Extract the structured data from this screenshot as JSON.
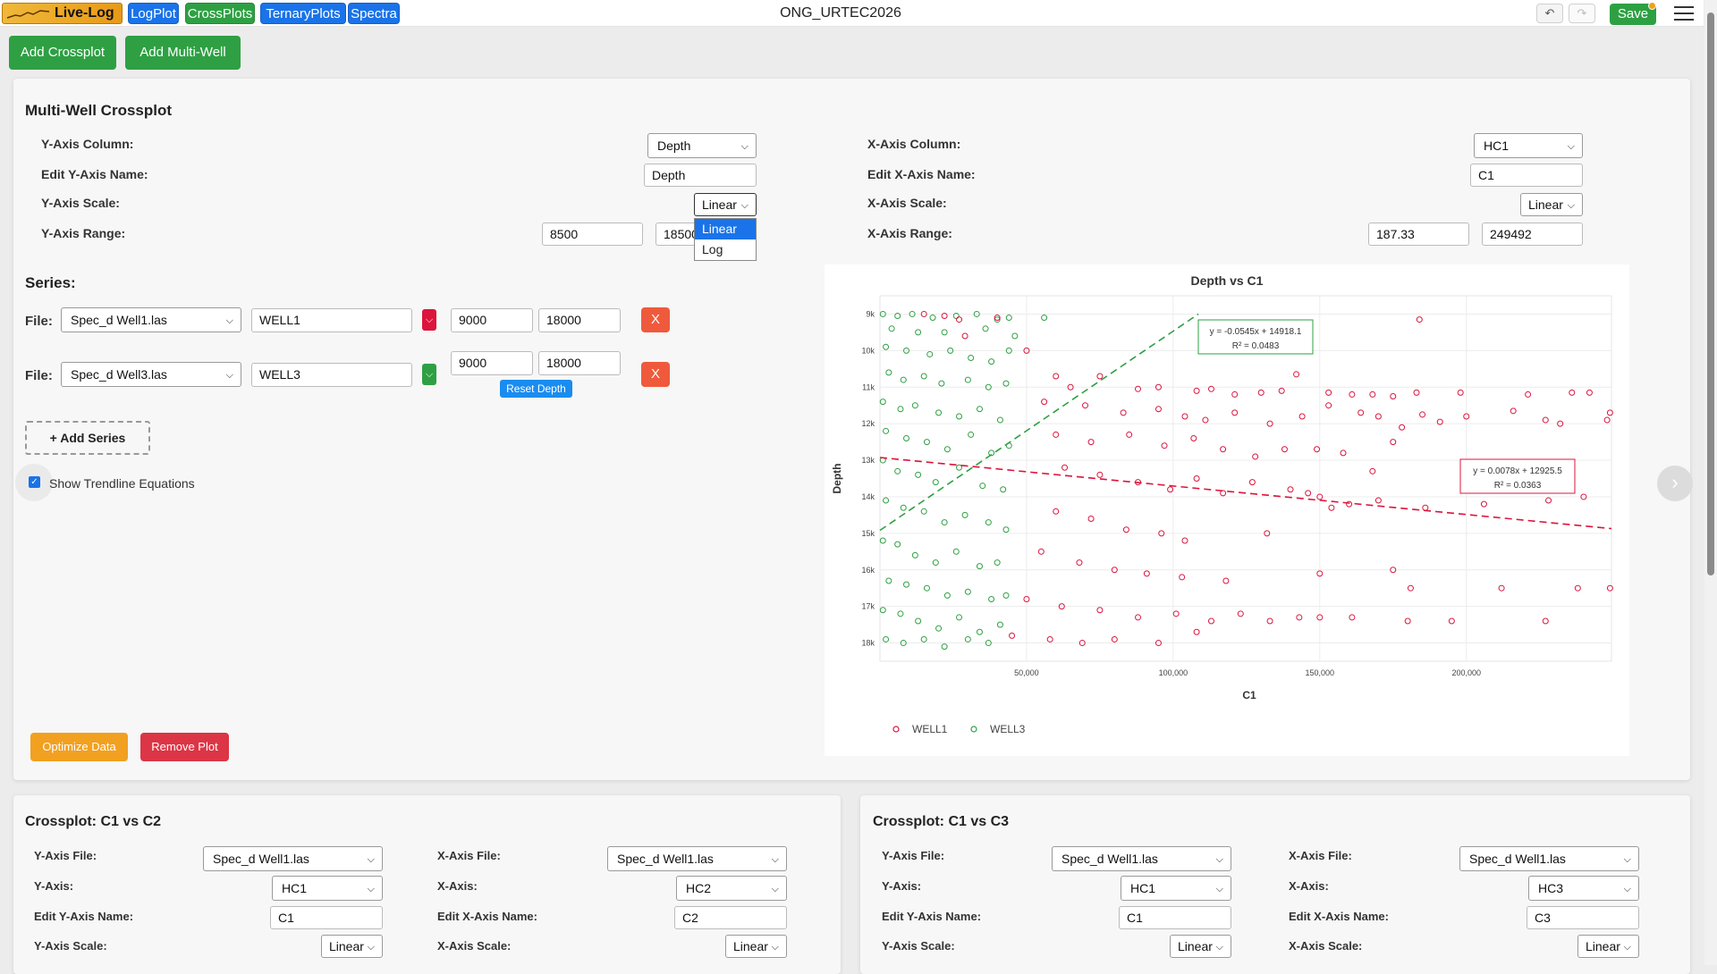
{
  "nav": {
    "logo_text": "Live-Log",
    "buttons": [
      {
        "label": "LogPlot",
        "color": "#1a73e8"
      },
      {
        "label": "CrossPlots",
        "color": "#2ea043"
      },
      {
        "label": "TernaryPlots",
        "color": "#1a73e8"
      },
      {
        "label": "Spectra",
        "color": "#1a73e8"
      }
    ],
    "doc_title": "ONG_URTEC2026",
    "undo_icon": "undo-icon",
    "redo_icon": "redo-icon",
    "save_label": "Save",
    "menu_icon": "hamburger-menu-icon"
  },
  "actions": {
    "add_crossplot": "Add Crossplot",
    "add_multiwell": "Add Multi-Well"
  },
  "multiwell": {
    "title": "Multi-Well Crossplot",
    "y_axis_column_label": "Y-Axis Column:",
    "y_axis_column_value": "Depth",
    "edit_y_name_label": "Edit Y-Axis Name:",
    "edit_y_name_value": "Depth",
    "y_scale_label": "Y-Axis Scale:",
    "y_scale_value": "Linear",
    "y_range_label": "Y-Axis Range:",
    "y_range_min": "8500",
    "y_range_max": "18500",
    "y_scale_options": [
      "Linear",
      "Log"
    ],
    "x_axis_column_label": "X-Axis Column:",
    "x_axis_column_value": "HC1",
    "edit_x_name_label": "Edit X-Axis Name:",
    "edit_x_name_value": "C1",
    "x_scale_label": "X-Axis Scale:",
    "x_scale_value": "Linear",
    "x_range_label": "X-Axis Range:",
    "x_range_min": "187.33",
    "x_range_max": "249492",
    "series_title": "Series:",
    "series": [
      {
        "file_label": "File:",
        "file": "Spec_d Well1.las",
        "name": "WELL1",
        "color": "#dc143c",
        "depth_min": "9000",
        "depth_max": "18000",
        "remove": "X"
      },
      {
        "file_label": "File:",
        "file": "Spec_d Well3.las",
        "name": "WELL3",
        "color": "#2ea043",
        "depth_min": "9000",
        "depth_max": "18000",
        "remove": "X",
        "reset": "Reset Depth"
      }
    ],
    "add_series": "+ Add Series",
    "show_trendline": "Show Trendline Equations",
    "optimize": "Optimize Data",
    "remove_plot": "Remove Plot"
  },
  "chart_data": {
    "type": "scatter",
    "title": "Depth vs C1",
    "xlabel": "C1",
    "ylabel": "Depth",
    "xlim": [
      0,
      249492
    ],
    "ylim": [
      8500,
      18500
    ],
    "y_reversed": true,
    "x_ticks": [
      "50,000",
      "100,000",
      "150,000",
      "200,000"
    ],
    "y_ticks": [
      "9k",
      "10k",
      "11k",
      "12k",
      "13k",
      "14k",
      "15k",
      "16k",
      "17k",
      "18k"
    ],
    "grid": true,
    "legend_position": "bottom-left",
    "series": [
      {
        "name": "WELL1",
        "color": "#dc143c",
        "trendline": {
          "equation": "y = 0.0078x + 12925.5",
          "r2": "R² = 0.0363",
          "slope": 0.0078,
          "intercept": 12925.5
        },
        "points": [
          [
            15000,
            9000
          ],
          [
            22000,
            9050
          ],
          [
            27000,
            9150
          ],
          [
            40000,
            9100
          ],
          [
            184000,
            9150
          ],
          [
            29000,
            9600
          ],
          [
            50000,
            10000
          ],
          [
            60000,
            10700
          ],
          [
            75000,
            10700
          ],
          [
            65000,
            11000
          ],
          [
            88000,
            11050
          ],
          [
            95000,
            11000
          ],
          [
            108000,
            11100
          ],
          [
            113000,
            11050
          ],
          [
            142000,
            10650
          ],
          [
            121000,
            11200
          ],
          [
            130000,
            11150
          ],
          [
            137000,
            11100
          ],
          [
            153000,
            11150
          ],
          [
            161000,
            11200
          ],
          [
            168000,
            11200
          ],
          [
            175000,
            11250
          ],
          [
            183000,
            11150
          ],
          [
            198000,
            11150
          ],
          [
            221000,
            11200
          ],
          [
            236000,
            11150
          ],
          [
            242000,
            11150
          ],
          [
            249000,
            11700
          ],
          [
            248000,
            11900
          ],
          [
            56000,
            11400
          ],
          [
            70000,
            11500
          ],
          [
            83000,
            11700
          ],
          [
            95000,
            11600
          ],
          [
            104000,
            11800
          ],
          [
            111000,
            11900
          ],
          [
            121000,
            11700
          ],
          [
            133000,
            12000
          ],
          [
            144000,
            11800
          ],
          [
            153000,
            11500
          ],
          [
            164000,
            11700
          ],
          [
            170000,
            11800
          ],
          [
            178000,
            12100
          ],
          [
            185000,
            11750
          ],
          [
            191000,
            11950
          ],
          [
            200000,
            11800
          ],
          [
            216000,
            11650
          ],
          [
            227000,
            11900
          ],
          [
            232000,
            12000
          ],
          [
            60000,
            12300
          ],
          [
            72000,
            12500
          ],
          [
            85000,
            12300
          ],
          [
            97000,
            12600
          ],
          [
            107000,
            12400
          ],
          [
            117000,
            12700
          ],
          [
            128000,
            12900
          ],
          [
            138000,
            12700
          ],
          [
            149000,
            12700
          ],
          [
            158000,
            12800
          ],
          [
            168000,
            13300
          ],
          [
            175000,
            12500
          ],
          [
            205000,
            13300
          ],
          [
            216000,
            13300
          ],
          [
            63000,
            13200
          ],
          [
            75000,
            13400
          ],
          [
            88000,
            13600
          ],
          [
            99000,
            13800
          ],
          [
            108000,
            13500
          ],
          [
            117000,
            13900
          ],
          [
            127000,
            13600
          ],
          [
            140000,
            13800
          ],
          [
            146000,
            13900
          ],
          [
            150000,
            14000
          ],
          [
            154000,
            14300
          ],
          [
            160000,
            14200
          ],
          [
            170000,
            14100
          ],
          [
            186000,
            14300
          ],
          [
            206000,
            14200
          ],
          [
            228000,
            14100
          ],
          [
            240000,
            14000
          ],
          [
            60000,
            14400
          ],
          [
            72000,
            14600
          ],
          [
            84000,
            14900
          ],
          [
            96000,
            15000
          ],
          [
            104000,
            15200
          ],
          [
            132000,
            15000
          ],
          [
            55000,
            15500
          ],
          [
            68000,
            15800
          ],
          [
            80000,
            16000
          ],
          [
            91000,
            16100
          ],
          [
            103000,
            16200
          ],
          [
            118000,
            16300
          ],
          [
            150000,
            16100
          ],
          [
            175000,
            16000
          ],
          [
            181000,
            16500
          ],
          [
            212000,
            16500
          ],
          [
            238000,
            16500
          ],
          [
            249000,
            16500
          ],
          [
            50000,
            16800
          ],
          [
            62000,
            17000
          ],
          [
            75000,
            17100
          ],
          [
            88000,
            17300
          ],
          [
            101000,
            17200
          ],
          [
            113000,
            17400
          ],
          [
            123000,
            17200
          ],
          [
            133000,
            17400
          ],
          [
            143000,
            17300
          ],
          [
            150000,
            17300
          ],
          [
            161000,
            17300
          ],
          [
            180000,
            17400
          ],
          [
            195000,
            17400
          ],
          [
            227000,
            17400
          ],
          [
            45000,
            17800
          ],
          [
            58000,
            17900
          ],
          [
            69000,
            18000
          ],
          [
            80000,
            17900
          ],
          [
            95000,
            18000
          ],
          [
            108000,
            17700
          ]
        ]
      },
      {
        "name": "WELL3",
        "color": "#2ea043",
        "trendline": {
          "equation": "y = -0.0545x + 14918.1",
          "r2": "R² = 0.0483",
          "slope": -0.0545,
          "intercept": 14918.1
        },
        "points": [
          [
            1000,
            9000
          ],
          [
            6000,
            9050
          ],
          [
            11000,
            9000
          ],
          [
            18000,
            9100
          ],
          [
            26000,
            9050
          ],
          [
            33000,
            9000
          ],
          [
            40000,
            9150
          ],
          [
            44000,
            9100
          ],
          [
            56000,
            9100
          ],
          [
            4000,
            9400
          ],
          [
            13000,
            9500
          ],
          [
            22000,
            9500
          ],
          [
            36000,
            9400
          ],
          [
            46000,
            9600
          ],
          [
            2000,
            9900
          ],
          [
            9000,
            10000
          ],
          [
            17000,
            10100
          ],
          [
            24000,
            10000
          ],
          [
            31000,
            10200
          ],
          [
            38000,
            10300
          ],
          [
            44000,
            10000
          ],
          [
            3000,
            10600
          ],
          [
            8000,
            10800
          ],
          [
            15000,
            10700
          ],
          [
            21000,
            10900
          ],
          [
            30000,
            10800
          ],
          [
            37000,
            11000
          ],
          [
            43000,
            10900
          ],
          [
            1000,
            11400
          ],
          [
            7000,
            11600
          ],
          [
            12000,
            11500
          ],
          [
            20000,
            11700
          ],
          [
            27000,
            11800
          ],
          [
            34000,
            11600
          ],
          [
            41000,
            11900
          ],
          [
            2000,
            12200
          ],
          [
            9000,
            12400
          ],
          [
            16000,
            12500
          ],
          [
            23000,
            12700
          ],
          [
            31000,
            12300
          ],
          [
            38000,
            12800
          ],
          [
            44000,
            12600
          ],
          [
            1000,
            13000
          ],
          [
            6000,
            13300
          ],
          [
            13000,
            13400
          ],
          [
            19000,
            13600
          ],
          [
            27000,
            13200
          ],
          [
            35000,
            13700
          ],
          [
            42000,
            13800
          ],
          [
            2000,
            14100
          ],
          [
            8000,
            14300
          ],
          [
            15000,
            14400
          ],
          [
            22000,
            14700
          ],
          [
            29000,
            14500
          ],
          [
            37000,
            14700
          ],
          [
            43000,
            14900
          ],
          [
            1000,
            15200
          ],
          [
            6000,
            15300
          ],
          [
            12000,
            15600
          ],
          [
            19000,
            15800
          ],
          [
            26000,
            15500
          ],
          [
            34000,
            15900
          ],
          [
            40000,
            15800
          ],
          [
            3000,
            16300
          ],
          [
            9000,
            16400
          ],
          [
            16000,
            16500
          ],
          [
            23000,
            16700
          ],
          [
            30000,
            16600
          ],
          [
            38000,
            16800
          ],
          [
            43000,
            16700
          ],
          [
            1000,
            17100
          ],
          [
            7000,
            17200
          ],
          [
            13000,
            17400
          ],
          [
            20000,
            17600
          ],
          [
            27000,
            17300
          ],
          [
            34000,
            17700
          ],
          [
            41000,
            17500
          ],
          [
            2000,
            17900
          ],
          [
            8000,
            18000
          ],
          [
            15000,
            17900
          ],
          [
            22000,
            18100
          ],
          [
            30000,
            17900
          ],
          [
            37000,
            18000
          ]
        ]
      }
    ]
  },
  "crossplot_c2": {
    "title": "Crossplot: C1 vs C2",
    "y_file_label": "Y-Axis File:",
    "y_file": "Spec_d Well1.las",
    "x_file_label": "X-Axis File:",
    "x_file": "Spec_d Well1.las",
    "y_axis_label": "Y-Axis:",
    "y_axis": "HC1",
    "x_axis_label": "X-Axis:",
    "x_axis": "HC2",
    "edit_y_label": "Edit Y-Axis Name:",
    "edit_y": "C1",
    "edit_x_label": "Edit X-Axis Name:",
    "edit_x": "C2",
    "y_scale_label": "Y-Axis Scale:",
    "y_scale": "Linear",
    "x_scale_label": "X-Axis Scale:",
    "x_scale": "Linear"
  },
  "crossplot_c3": {
    "title": "Crossplot: C1 vs C3",
    "y_file_label": "Y-Axis File:",
    "y_file": "Spec_d Well1.las",
    "x_file_label": "X-Axis File:",
    "x_file": "Spec_d Well1.las",
    "y_axis_label": "Y-Axis:",
    "y_axis": "HC1",
    "x_axis_label": "X-Axis:",
    "x_axis": "HC3",
    "edit_y_label": "Edit Y-Axis Name:",
    "edit_y": "C1",
    "edit_x_label": "Edit X-Axis Name:",
    "edit_x": "C3",
    "y_scale_label": "Y-Axis Scale:",
    "y_scale": "Linear",
    "x_scale_label": "X-Axis Scale:",
    "x_scale": "Linear"
  }
}
